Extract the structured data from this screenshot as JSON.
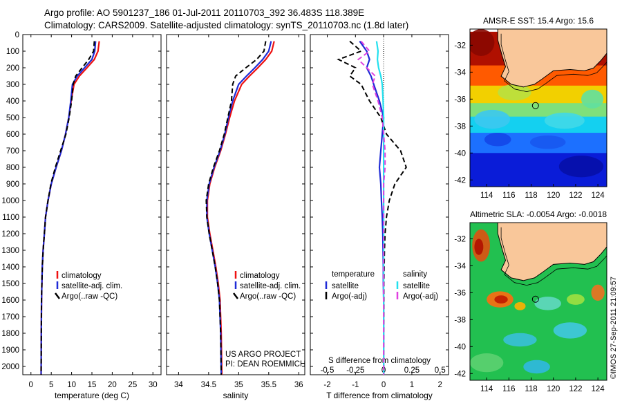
{
  "header": {
    "line1": "Argo profile: AO 5901237_186 01-Jul-2011 20110703_392 36.483S 118.389E",
    "line2": "Climatology: CARS2009. Satellite-adjusted climatology: synTS_20110703.nc (1.8d later)"
  },
  "side_label": "©IMOS 27-Sep-2011 21:09:57",
  "colors": {
    "climatology": "#ee1111",
    "satellite": "#1f2bd6",
    "argo": "#000000",
    "satellite_salinity": "#22e0ee",
    "argo_salinity": "#e040e0",
    "land": "#f9c79a",
    "coast": "#000000"
  },
  "chart_data": [
    {
      "type": "line",
      "id": "temperature",
      "xlabel": "temperature (deg C)",
      "ylabel": "",
      "xlim": [
        -2,
        32
      ],
      "ylim": [
        2050,
        0
      ],
      "xticks": [
        "0",
        "5",
        "10",
        "15",
        "20",
        "25",
        "30"
      ],
      "xtick_values": [
        0,
        5,
        10,
        15,
        20,
        25,
        30
      ],
      "yticks": [
        "0",
        "100",
        "200",
        "300",
        "400",
        "500",
        "600",
        "700",
        "800",
        "900",
        "1000",
        "1100",
        "1200",
        "1300",
        "1400",
        "1500",
        "1600",
        "1700",
        "1800",
        "1900",
        "2000"
      ],
      "ytick_values": [
        0,
        100,
        200,
        300,
        400,
        500,
        600,
        700,
        800,
        900,
        1000,
        1100,
        1200,
        1300,
        1400,
        1500,
        1600,
        1700,
        1800,
        1900,
        2000
      ],
      "legend": [
        "climatology",
        "satellite-adj. clim.",
        "Argo(..raw -QC)"
      ],
      "series": [
        {
          "name": "climatology",
          "style": "solid",
          "color": "#ee1111",
          "x": [
            16.8,
            16.5,
            15.6,
            13.8,
            11.9,
            10.6,
            9.9,
            9.3,
            8.5,
            7.5,
            6.2,
            5.0,
            4.2,
            3.6,
            3.3,
            3.0,
            2.8,
            2.7,
            2.6,
            2.55,
            2.5
          ],
          "y": [
            40,
            100,
            150,
            200,
            250,
            300,
            400,
            500,
            600,
            700,
            800,
            900,
            1000,
            1100,
            1200,
            1300,
            1400,
            1500,
            1600,
            1800,
            2050
          ]
        },
        {
          "name": "satellite-adj. clim.",
          "style": "solid",
          "color": "#1f2bd6",
          "x": [
            15.9,
            15.7,
            15.0,
            13.2,
            11.4,
            10.2,
            9.8,
            9.3,
            8.5,
            7.5,
            6.2,
            5.0,
            4.2,
            3.6,
            3.3,
            3.0,
            2.8,
            2.7,
            2.6,
            2.55,
            2.5
          ],
          "y": [
            40,
            100,
            150,
            200,
            250,
            300,
            400,
            500,
            600,
            700,
            800,
            900,
            1000,
            1100,
            1200,
            1300,
            1400,
            1500,
            1600,
            1800,
            2050
          ]
        },
        {
          "name": "Argo(..raw -QC)",
          "style": "dashed",
          "color": "#000000",
          "x": [
            15.6,
            15.4,
            14.2,
            12.6,
            11.0,
            10.4,
            10.0,
            9.4,
            8.6,
            7.3,
            6.0,
            4.9,
            4.2,
            3.6,
            3.3,
            3.0,
            2.8,
            2.7,
            2.6,
            2.55,
            2.5
          ],
          "y": [
            40,
            100,
            150,
            200,
            250,
            300,
            400,
            500,
            600,
            700,
            800,
            900,
            1000,
            1100,
            1200,
            1300,
            1400,
            1500,
            1600,
            1800,
            2050
          ]
        }
      ]
    },
    {
      "type": "line",
      "id": "salinity",
      "xlabel": "salinity",
      "ylabel": "",
      "xlim": [
        33.8,
        36.1
      ],
      "ylim": [
        2050,
        0
      ],
      "xticks": [
        "34",
        "34.5",
        "35",
        "35.5",
        "36"
      ],
      "xtick_values": [
        34,
        34.5,
        35,
        35.5,
        36
      ],
      "legend": [
        "climatology",
        "satellite-adj. clim.",
        "Argo(..raw -QC)"
      ],
      "annotation": [
        "US ARGO PROJECT",
        "PI: DEAN ROEMMICH"
      ],
      "series": [
        {
          "name": "climatology",
          "style": "solid",
          "color": "#ee1111",
          "x": [
            35.59,
            35.55,
            35.45,
            35.32,
            35.18,
            35.05,
            34.93,
            34.85,
            34.78,
            34.7,
            34.6,
            34.52,
            34.48,
            34.48,
            34.52,
            34.57,
            34.62,
            34.66,
            34.69,
            34.71,
            34.72
          ],
          "y": [
            40,
            100,
            150,
            200,
            250,
            300,
            400,
            500,
            600,
            700,
            800,
            900,
            1000,
            1100,
            1200,
            1300,
            1400,
            1500,
            1600,
            1800,
            2050
          ]
        },
        {
          "name": "satellite-adj. clim.",
          "style": "solid",
          "color": "#1f2bd6",
          "x": [
            35.54,
            35.5,
            35.4,
            35.27,
            35.13,
            35.0,
            34.9,
            34.83,
            34.77,
            34.69,
            34.59,
            34.51,
            34.47,
            34.47,
            34.51,
            34.56,
            34.61,
            34.65,
            34.68,
            34.7,
            34.71
          ],
          "y": [
            40,
            100,
            150,
            200,
            250,
            300,
            400,
            500,
            600,
            700,
            800,
            900,
            1000,
            1100,
            1200,
            1300,
            1400,
            1500,
            1600,
            1800,
            2050
          ]
        },
        {
          "name": "Argo(..raw -QC)",
          "style": "dashed",
          "color": "#000000",
          "x": [
            35.45,
            35.42,
            35.3,
            35.12,
            34.95,
            34.9,
            34.88,
            34.82,
            34.76,
            34.68,
            34.58,
            34.5,
            34.46,
            34.47,
            34.51,
            34.56,
            34.61,
            34.65,
            34.68,
            34.7,
            34.71
          ],
          "y": [
            40,
            100,
            150,
            200,
            250,
            300,
            400,
            500,
            600,
            700,
            800,
            900,
            1000,
            1100,
            1200,
            1300,
            1400,
            1500,
            1600,
            1800,
            2050
          ]
        }
      ]
    },
    {
      "type": "line",
      "id": "difference",
      "xlabel": "T difference from climatology",
      "xlabel_top": "S difference from climatology",
      "xlim": [
        -2.6,
        2.3
      ],
      "ylim": [
        2050,
        0
      ],
      "xticks": [
        "-2",
        "-1",
        "0",
        "1",
        "2"
      ],
      "xtick_values": [
        -2,
        -1,
        0,
        1,
        2
      ],
      "s_ticks": [
        "-0.5",
        "-0.25",
        "0",
        "0.25",
        "0.5"
      ],
      "legend_headers": [
        "temperature",
        "salinity"
      ],
      "legend": [
        "satellite",
        "Argo(-adj)",
        "satellite",
        "Argo(-adj)"
      ],
      "series": [
        {
          "name": "temperature satellite",
          "style": "solid",
          "color": "#1f2bd6",
          "x": [
            -0.85,
            -0.6,
            -0.5,
            -0.6,
            -0.45,
            -0.35,
            -0.15,
            0.0,
            -0.05,
            -0.1,
            -0.15,
            -0.1,
            -0.08,
            -0.05,
            -0.03,
            -0.02,
            -0.01,
            -0.01,
            0.0,
            0.0,
            0.0
          ],
          "y": [
            40,
            100,
            150,
            200,
            250,
            300,
            400,
            500,
            600,
            700,
            800,
            900,
            1000,
            1100,
            1200,
            1300,
            1400,
            1500,
            1600,
            1800,
            2050
          ]
        },
        {
          "name": "temperature Argo(-adj)",
          "style": "dashed",
          "color": "#000000",
          "x": [
            -1.2,
            -0.8,
            -1.6,
            -1.0,
            -1.2,
            -0.8,
            -0.5,
            -0.1,
            0.1,
            0.6,
            0.8,
            0.4,
            0.2,
            0.1,
            0.05,
            0.03,
            0.02,
            0.01,
            0.01,
            0.0,
            0.0
          ],
          "y": [
            40,
            100,
            150,
            200,
            250,
            300,
            400,
            500,
            600,
            700,
            800,
            900,
            1000,
            1100,
            1200,
            1300,
            1400,
            1500,
            1600,
            1800,
            2050
          ]
        },
        {
          "name": "salinity satellite",
          "style": "solid",
          "color": "#22e0ee",
          "x": [
            -0.25,
            -0.2,
            -0.22,
            -0.18,
            -0.1,
            -0.05,
            -0.02,
            0.0,
            0.0,
            0.0,
            0.0,
            0.0,
            0.0,
            0.0,
            0.0,
            0.0,
            0.0,
            0.0,
            0.0,
            0.0,
            0.0
          ],
          "y": [
            40,
            100,
            150,
            200,
            250,
            300,
            400,
            500,
            600,
            700,
            800,
            900,
            1000,
            1100,
            1200,
            1300,
            1400,
            1500,
            1600,
            1800,
            2050
          ]
        },
        {
          "name": "salinity Argo(-adj)",
          "style": "dashed",
          "color": "#e040e0",
          "x": [
            -0.8,
            -0.5,
            -0.9,
            -0.6,
            -0.3,
            -0.4,
            -0.2,
            -0.05,
            0.0,
            0.05,
            0.05,
            0.0,
            0.0,
            0.0,
            0.0,
            0.0,
            0.0,
            0.0,
            0.0,
            0.0,
            0.0
          ],
          "y": [
            40,
            100,
            150,
            200,
            250,
            300,
            400,
            500,
            600,
            700,
            800,
            900,
            1000,
            1100,
            1200,
            1300,
            1400,
            1500,
            1600,
            1800,
            2050
          ]
        }
      ]
    },
    {
      "type": "heatmap",
      "id": "sst_map",
      "title": "AMSR-E SST: 15.4 Argo: 15.6",
      "xlim": [
        112.5,
        124.8
      ],
      "ylim": [
        -42.5,
        -30.8
      ],
      "xticks": [
        "114",
        "116",
        "118",
        "120",
        "122",
        "124"
      ],
      "xtick_values": [
        114,
        116,
        118,
        120,
        122,
        124
      ],
      "yticks": [
        "-32",
        "-34",
        "-36",
        "-38",
        "-40",
        "-42"
      ],
      "ytick_values": [
        -32,
        -34,
        -36,
        -38,
        -40,
        -42
      ],
      "argo_position": [
        118.389,
        -36.483
      ],
      "color_bands": [
        {
          "lat": -31.0,
          "color": "#b01000"
        },
        {
          "lat": -33.5,
          "color": "#ff5a00"
        },
        {
          "lat": -35.0,
          "color": "#f2d000"
        },
        {
          "lat": -36.3,
          "color": "#7ee07a"
        },
        {
          "lat": -37.3,
          "color": "#14d0f0"
        },
        {
          "lat": -38.5,
          "color": "#1c70ff"
        },
        {
          "lat": -40.0,
          "color": "#0a1cd8"
        },
        {
          "lat": -42.5,
          "color": "#0814b0"
        }
      ]
    },
    {
      "type": "heatmap",
      "id": "sla_map",
      "title": "Altimetric SLA: -0.0054 Argo: -0.0018",
      "xlim": [
        112.5,
        124.8
      ],
      "ylim": [
        -42.5,
        -30.8
      ],
      "xticks": [
        "114",
        "116",
        "118",
        "120",
        "122",
        "124"
      ],
      "xtick_values": [
        114,
        116,
        118,
        120,
        122,
        124
      ],
      "yticks": [
        "-32",
        "-34",
        "-36",
        "-38",
        "-40",
        "-42"
      ],
      "ytick_values": [
        -32,
        -34,
        -36,
        -38,
        -40,
        -42
      ],
      "argo_position": [
        118.389,
        -36.483
      ],
      "base_color": "#22c050"
    }
  ]
}
